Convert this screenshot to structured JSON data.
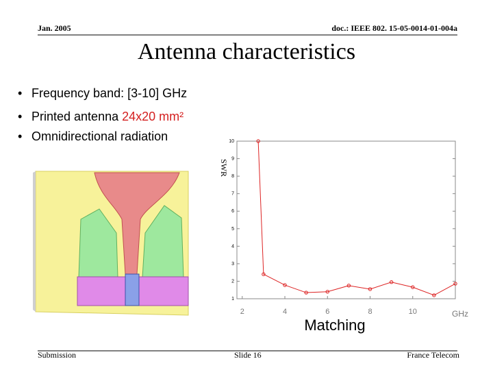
{
  "header": {
    "date": "Jan. 2005",
    "doc": "doc.: IEEE 802. 15-05-0014-01-004a"
  },
  "title": "Antenna characteristics",
  "bullets": [
    {
      "text": "Frequency band: [3-10] GHz"
    },
    {
      "text": "Printed antenna ",
      "highlight": "24x20 mm²"
    },
    {
      "text": "Omnidirectional radiation"
    }
  ],
  "chart_data": {
    "type": "line",
    "y_label": "SWR",
    "x_unit": "GHz",
    "caption": "Matching",
    "x": [
      2.75,
      3,
      4,
      5,
      6,
      7,
      8,
      9,
      10,
      11,
      12
    ],
    "series": [
      {
        "color": "#dd2222",
        "values": [
          10,
          2.4,
          1.78,
          1.35,
          1.4,
          1.75,
          1.55,
          1.95,
          1.66,
          1.2,
          1.86
        ]
      }
    ],
    "xlim": [
      1.75,
      12
    ],
    "ylim": [
      1,
      10
    ],
    "xticks": [
      2,
      4,
      6,
      8,
      10
    ],
    "yticks": [
      1,
      2,
      3,
      4,
      5,
      6,
      7,
      8,
      9,
      10
    ]
  },
  "footer": {
    "left": "Submission",
    "center": "Slide 16",
    "right": "France Telecom"
  }
}
